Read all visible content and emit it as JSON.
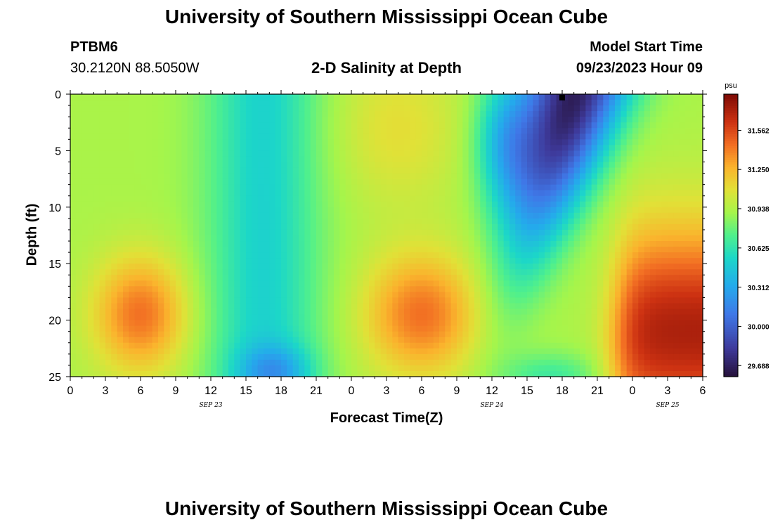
{
  "header": {
    "title": "University of Southern Mississippi Ocean Cube",
    "station": "PTBM6",
    "coords": "30.2120N  88.5050W",
    "subtitle": "2-D Salinity at Depth",
    "model_start_label": "Model Start Time",
    "model_start_value": "09/23/2023 Hour 09"
  },
  "footer": {
    "title": "University of Southern Mississippi Ocean Cube"
  },
  "chart_data": {
    "type": "heatmap",
    "title": "2-D Salinity at Depth",
    "xlabel": "Forecast Time(Z)",
    "ylabel": "Depth (ft)",
    "x_ticks": [
      "0",
      "3",
      "6",
      "9",
      "12",
      "15",
      "18",
      "21",
      "0",
      "3",
      "6",
      "9",
      "12",
      "15",
      "18",
      "21",
      "0",
      "3",
      "6"
    ],
    "x_range_hours": [
      0,
      54
    ],
    "date_labels": [
      {
        "label": "SEP 23",
        "hour": 12
      },
      {
        "label": "SEP 24",
        "hour": 36
      },
      {
        "label": "SEP 25",
        "hour": 51
      }
    ],
    "y_ticks": [
      0,
      5,
      10,
      15,
      20,
      25
    ],
    "y_range_ft": [
      0,
      25
    ],
    "colorbar": {
      "unit": "psu",
      "ticks": [
        "31.562",
        "31.250",
        "30.938",
        "30.625",
        "30.312",
        "30.000",
        "29.688"
      ],
      "range": [
        29.6,
        31.85
      ]
    },
    "marker": {
      "hour": 42,
      "depth": 0.3
    },
    "field_features": [
      {
        "type": "high",
        "hour": 6,
        "depth": 20,
        "value": 31.45
      },
      {
        "type": "low_column",
        "hour": 16,
        "value": 30.5
      },
      {
        "type": "high",
        "hour": 30,
        "depth": 20,
        "value": 31.45
      },
      {
        "type": "low",
        "hour": 43,
        "depth": 0,
        "value": 29.7
      },
      {
        "type": "high",
        "hour": 52,
        "depth": 21,
        "value": 31.7
      }
    ]
  }
}
